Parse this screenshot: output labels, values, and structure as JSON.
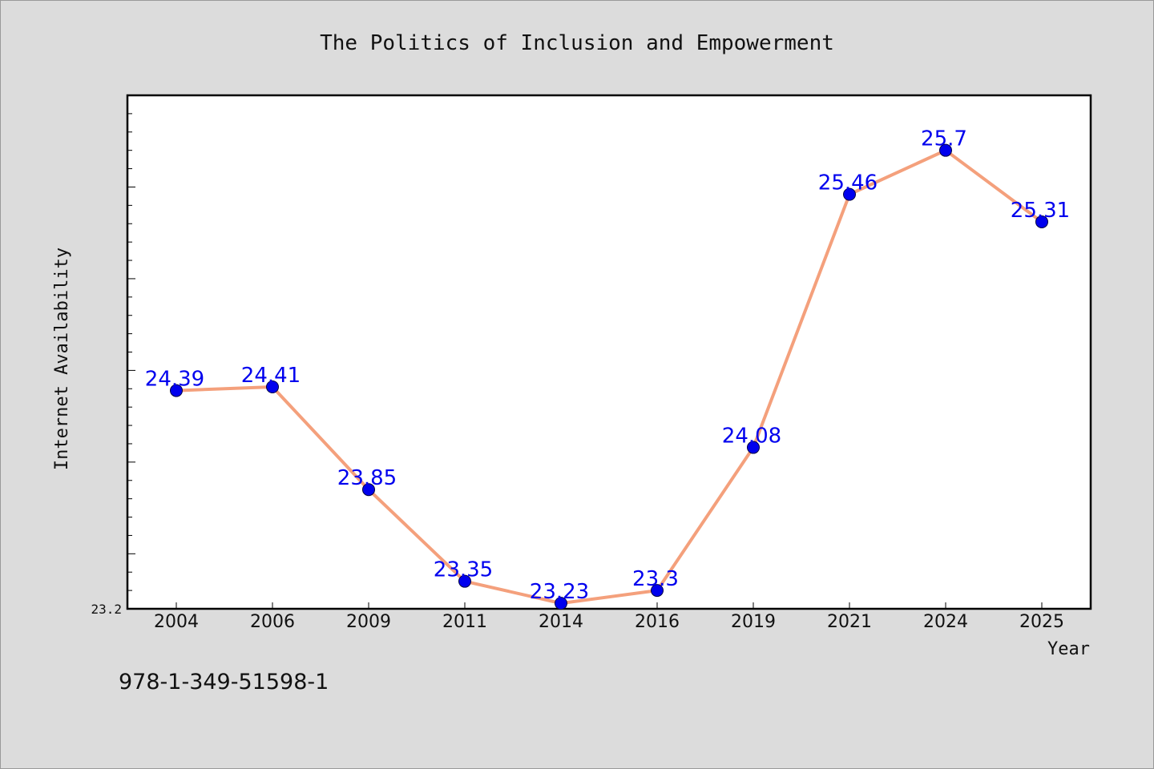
{
  "chart_data": {
    "type": "line",
    "title": "The Politics of Inclusion and Empowerment",
    "xlabel": "Year",
    "ylabel": "Internet Availability",
    "categories": [
      "2004",
      "2006",
      "2009",
      "2011",
      "2014",
      "2016",
      "2019",
      "2021",
      "2024",
      "2025"
    ],
    "series": [
      {
        "values": [
          24.39,
          24.41,
          23.85,
          23.35,
          23.23,
          23.3,
          24.08,
          25.46,
          25.7,
          25.31
        ],
        "labels": [
          "24.39",
          "24.41",
          "23.85",
          "23.35",
          "23.23",
          "23.3",
          "24.08",
          "25.46",
          "25.7",
          "25.31"
        ]
      }
    ],
    "ylim": [
      23.2,
      26.0
    ],
    "ytick_labels": [
      "23.2"
    ],
    "grid": false,
    "line_color": "#f4a07c",
    "marker_color": "#0000ee",
    "label_color": "#0000ee"
  },
  "footer": {
    "isbn": "978-1-349-51598-1"
  }
}
